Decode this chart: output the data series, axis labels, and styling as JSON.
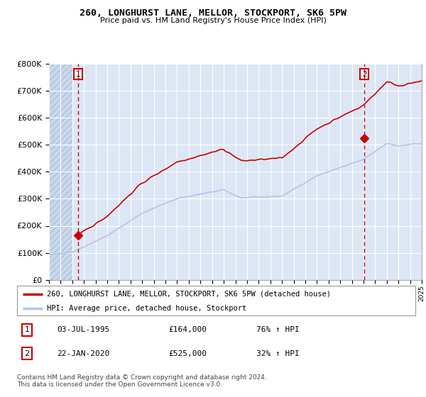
{
  "title": "260, LONGHURST LANE, MELLOR, STOCKPORT, SK6 5PW",
  "subtitle": "Price paid vs. HM Land Registry's House Price Index (HPI)",
  "legend_line1": "260, LONGHURST LANE, MELLOR, STOCKPORT, SK6 5PW (detached house)",
  "legend_line2": "HPI: Average price, detached house, Stockport",
  "footnote": "Contains HM Land Registry data © Crown copyright and database right 2024.\nThis data is licensed under the Open Government Licence v3.0.",
  "transaction1_date": "03-JUL-1995",
  "transaction1_price": 164000,
  "transaction1_hpi": "76% ↑ HPI",
  "transaction2_date": "22-JAN-2020",
  "transaction2_price": 525000,
  "transaction2_hpi": "32% ↑ HPI",
  "ylim": [
    0,
    800000
  ],
  "yticks": [
    0,
    100000,
    200000,
    300000,
    400000,
    500000,
    600000,
    700000,
    800000
  ],
  "ytick_labels": [
    "£0",
    "£100K",
    "£200K",
    "£300K",
    "£400K",
    "£500K",
    "£600K",
    "£700K",
    "£800K"
  ],
  "hpi_color": "#aec6e8",
  "price_color": "#cc0000",
  "marker_color": "#cc0000",
  "dashed_line_color": "#cc0000",
  "chart_bg_color": "#dce6f5",
  "grid_color": "#ffffff",
  "transaction1_x": 1995.5,
  "transaction2_x": 2020.08,
  "xstart": 1993,
  "xend": 2025
}
